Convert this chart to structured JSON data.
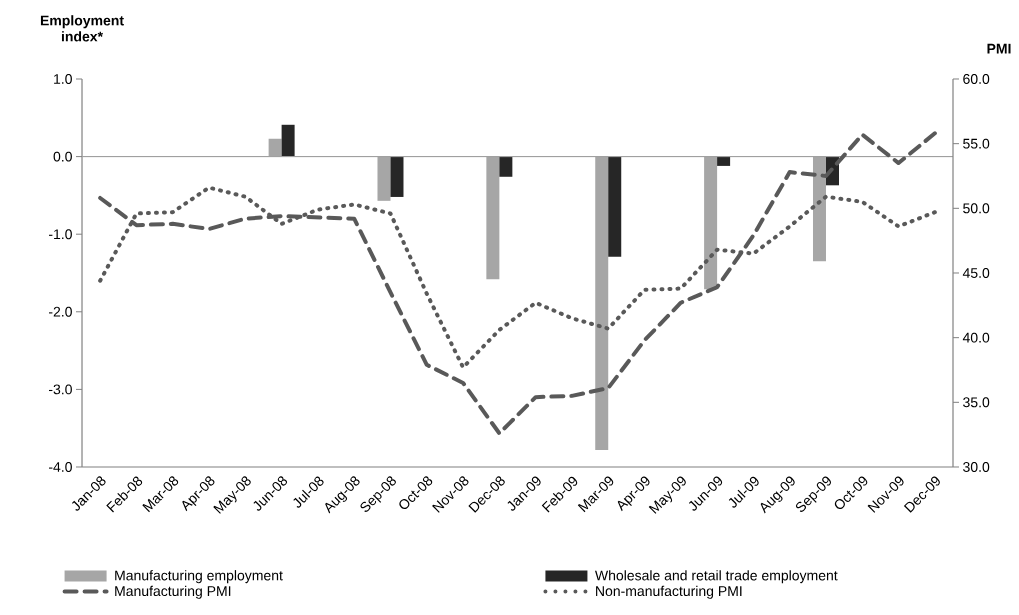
{
  "chart_data": {
    "type": "bar",
    "ylabel": "Employment index*",
    "y2label": "PMI",
    "categories": [
      "Jan-08",
      "Feb-08",
      "Mar-08",
      "Apr-08",
      "May-08",
      "Jun-08",
      "Jul-08",
      "Aug-08",
      "Sep-08",
      "Oct-08",
      "Nov-08",
      "Dec-08",
      "Jan-09",
      "Feb-09",
      "Mar-09",
      "Apr-09",
      "May-09",
      "Jun-09",
      "Jul-09",
      "Aug-09",
      "Sep-09",
      "Oct-09",
      "Nov-09",
      "Dec-09"
    ],
    "series": [
      {
        "name": "Manufacturing employment",
        "color": "#a6a6a6",
        "values": [
          null,
          null,
          null,
          null,
          null,
          0.23,
          null,
          null,
          -0.57,
          null,
          null,
          -1.58,
          null,
          null,
          -3.78,
          null,
          null,
          -1.71,
          null,
          null,
          -1.35,
          null,
          null,
          null
        ]
      },
      {
        "name": "Wholesale and retail trade employment",
        "color": "#262626",
        "values": [
          null,
          null,
          null,
          null,
          null,
          0.41,
          null,
          null,
          -0.52,
          null,
          null,
          -0.26,
          null,
          null,
          -1.29,
          null,
          null,
          -0.12,
          null,
          null,
          -0.37,
          null,
          null,
          null
        ]
      },
      {
        "name": "Manufacturing PMI",
        "type": "line",
        "axis": "y2",
        "line_style": "dashed",
        "color": "#595959",
        "values": [
          50.8,
          48.7,
          48.8,
          48.4,
          49.2,
          49.4,
          49.3,
          49.2,
          43.5,
          37.9,
          36.5,
          32.6,
          35.4,
          35.5,
          36.1,
          39.8,
          42.7,
          43.9,
          47.9,
          52.8,
          52.5,
          55.7,
          53.5,
          55.8
        ]
      },
      {
        "name": "Non-manufacturing PMI",
        "type": "line",
        "axis": "y2",
        "line_style": "dotted",
        "color": "#595959",
        "values": [
          44.4,
          49.6,
          49.7,
          51.6,
          50.9,
          48.8,
          49.9,
          50.3,
          49.6,
          43.4,
          37.7,
          40.6,
          42.7,
          41.5,
          40.7,
          43.7,
          43.8,
          46.8,
          46.5,
          48.6,
          50.9,
          50.5,
          48.6,
          49.7
        ]
      }
    ],
    "ylim": [
      -4,
      1
    ],
    "yticks": [
      {
        "value": -4,
        "label": "-4.0"
      },
      {
        "value": -3,
        "label": "-3.0"
      },
      {
        "value": -2,
        "label": "-2.0"
      },
      {
        "value": -1,
        "label": "-1.0"
      },
      {
        "value": 0,
        "label": "0.0"
      },
      {
        "value": 1,
        "label": "1.0"
      }
    ],
    "y2lim": [
      30,
      60
    ],
    "y2ticks": [
      {
        "value": 30,
        "label": "30.0"
      },
      {
        "value": 35,
        "label": "35.0"
      },
      {
        "value": 40,
        "label": "40.0"
      },
      {
        "value": 45,
        "label": "45.0"
      },
      {
        "value": 50,
        "label": "50.0"
      },
      {
        "value": 55,
        "label": "55.0"
      },
      {
        "value": 60,
        "label": "60.0"
      }
    ],
    "ref_lines": [
      {
        "axis": "y",
        "value": 0,
        "color": "#a0a0a0"
      }
    ],
    "grid": false,
    "legend": "bottom",
    "marker": "none"
  }
}
